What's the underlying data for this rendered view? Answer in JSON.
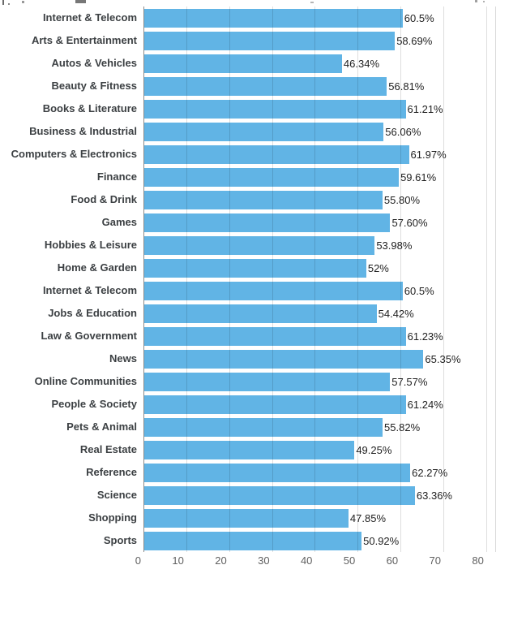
{
  "chart_data": {
    "type": "bar",
    "orientation": "horizontal",
    "title": "",
    "xlabel": "",
    "ylabel": "",
    "grid": true,
    "legend_position": "none",
    "bar_color": "#61b4e5",
    "categories": [
      "Internet & Telecom",
      "Arts & Entertainment",
      "Autos & Vehicles",
      "Beauty & Fitness",
      "Books & Literature",
      "Business & Industrial",
      "Computers & Electronics",
      "Finance",
      "Food & Drink",
      "Games",
      "Hobbies & Leisure",
      "Home & Garden",
      "Internet & Telecom",
      "Jobs & Education",
      "Law & Government",
      "News",
      "Online Communities",
      "People & Society",
      "Pets & Animal",
      "Real Estate",
      "Reference",
      "Science",
      "Shopping",
      "Sports"
    ],
    "values": [
      60.5,
      58.69,
      46.34,
      56.81,
      61.21,
      56.06,
      61.97,
      59.61,
      55.8,
      57.6,
      53.98,
      52,
      60.5,
      54.42,
      61.23,
      65.35,
      57.57,
      61.24,
      55.82,
      49.25,
      62.27,
      63.36,
      47.85,
      50.92
    ],
    "display_values": [
      "60.5%",
      "58.69%",
      "46.34%",
      "56.81%",
      "61.21%",
      "56.06%",
      "61.97%",
      "59.61%",
      "55.80%",
      "57.60%",
      "53.98%",
      "52%",
      "60.5%",
      "54.42%",
      "61.23%",
      "65.35%",
      "57.57%",
      "61.24%",
      "55.82%",
      "49.25%",
      "62.27%",
      "63.36%",
      "47.85%",
      "50.92%"
    ],
    "x_ticks": [
      "0",
      "10",
      "20",
      "30",
      "40",
      "50",
      "60",
      "70",
      "80"
    ],
    "x_tick_values": [
      0,
      10,
      20,
      30,
      40,
      50,
      60,
      70,
      80
    ],
    "xlim": [
      0,
      82.3
    ]
  },
  "colors": {
    "bar": "#61b4e5",
    "gridline": "#d9d9d9",
    "axis_line": "#8a8a8a",
    "tick_label": "#616161",
    "category_label": "#3c4043",
    "value_label": "#1f1f1f"
  }
}
